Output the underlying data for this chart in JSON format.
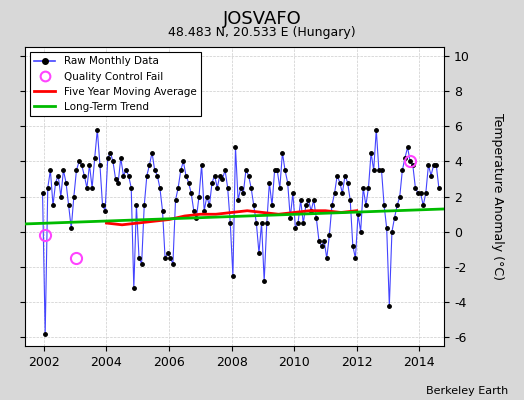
{
  "title": "JOSVAFO",
  "subtitle": "48.483 N, 20.533 E (Hungary)",
  "credit": "Berkeley Earth",
  "ylabel": "Temperature Anomaly (°C)",
  "ylim": [
    -6.5,
    10.5
  ],
  "yticks": [
    -6,
    -4,
    -2,
    0,
    2,
    4,
    6,
    8,
    10
  ],
  "xlim": [
    2001.4,
    2014.8
  ],
  "xticks": [
    2002,
    2004,
    2006,
    2008,
    2010,
    2012,
    2014
  ],
  "bg_color": "#d8d8d8",
  "plot_bg": "#ffffff",
  "raw_color": "#4444ff",
  "ma_color": "#ff0000",
  "trend_color": "#00bb00",
  "qc_color": "#ff44ff",
  "raw_data": {
    "times": [
      2001.958,
      2002.042,
      2002.125,
      2002.208,
      2002.292,
      2002.375,
      2002.458,
      2002.542,
      2002.625,
      2002.708,
      2002.792,
      2002.875,
      2002.958,
      2003.042,
      2003.125,
      2003.208,
      2003.292,
      2003.375,
      2003.458,
      2003.542,
      2003.625,
      2003.708,
      2003.792,
      2003.875,
      2003.958,
      2004.042,
      2004.125,
      2004.208,
      2004.292,
      2004.375,
      2004.458,
      2004.542,
      2004.625,
      2004.708,
      2004.792,
      2004.875,
      2004.958,
      2005.042,
      2005.125,
      2005.208,
      2005.292,
      2005.375,
      2005.458,
      2005.542,
      2005.625,
      2005.708,
      2005.792,
      2005.875,
      2005.958,
      2006.042,
      2006.125,
      2006.208,
      2006.292,
      2006.375,
      2006.458,
      2006.542,
      2006.625,
      2006.708,
      2006.792,
      2006.875,
      2006.958,
      2007.042,
      2007.125,
      2007.208,
      2007.292,
      2007.375,
      2007.458,
      2007.542,
      2007.625,
      2007.708,
      2007.792,
      2007.875,
      2007.958,
      2008.042,
      2008.125,
      2008.208,
      2008.292,
      2008.375,
      2008.458,
      2008.542,
      2008.625,
      2008.708,
      2008.792,
      2008.875,
      2008.958,
      2009.042,
      2009.125,
      2009.208,
      2009.292,
      2009.375,
      2009.458,
      2009.542,
      2009.625,
      2009.708,
      2009.792,
      2009.875,
      2009.958,
      2010.042,
      2010.125,
      2010.208,
      2010.292,
      2010.375,
      2010.458,
      2010.542,
      2010.625,
      2010.708,
      2010.792,
      2010.875,
      2010.958,
      2011.042,
      2011.125,
      2011.208,
      2011.292,
      2011.375,
      2011.458,
      2011.542,
      2011.625,
      2011.708,
      2011.792,
      2011.875,
      2011.958,
      2012.042,
      2012.125,
      2012.208,
      2012.292,
      2012.375,
      2012.458,
      2012.542,
      2012.625,
      2012.708,
      2012.792,
      2012.875,
      2012.958,
      2013.042,
      2013.125,
      2013.208,
      2013.292,
      2013.375,
      2013.458,
      2013.542,
      2013.625,
      2013.708,
      2013.792,
      2013.875,
      2013.958,
      2014.042,
      2014.125,
      2014.208,
      2014.292,
      2014.375,
      2014.458,
      2014.542,
      2014.625
    ],
    "values": [
      2.2,
      -5.8,
      2.5,
      3.5,
      1.5,
      2.8,
      3.2,
      2.0,
      3.5,
      2.8,
      1.5,
      0.2,
      2.0,
      3.5,
      4.0,
      3.8,
      3.2,
      2.5,
      3.8,
      2.5,
      4.2,
      5.8,
      3.8,
      1.5,
      1.2,
      4.2,
      4.5,
      4.0,
      3.0,
      2.8,
      4.2,
      3.2,
      3.5,
      3.2,
      2.5,
      -3.2,
      1.5,
      -1.5,
      -1.8,
      1.5,
      3.2,
      3.8,
      4.5,
      3.5,
      3.2,
      2.5,
      1.2,
      -1.5,
      -1.2,
      -1.5,
      -1.8,
      1.8,
      2.5,
      3.5,
      4.0,
      3.2,
      2.8,
      2.2,
      1.2,
      0.8,
      2.0,
      3.8,
      1.2,
      2.0,
      1.5,
      2.8,
      3.2,
      2.5,
      3.2,
      3.0,
      3.5,
      2.5,
      0.5,
      -2.5,
      4.8,
      1.8,
      2.5,
      2.2,
      3.5,
      3.2,
      2.5,
      1.5,
      0.5,
      -1.2,
      0.5,
      -2.8,
      0.5,
      2.8,
      1.5,
      3.5,
      3.5,
      2.5,
      4.5,
      3.5,
      2.8,
      0.8,
      2.2,
      0.2,
      0.5,
      1.8,
      0.5,
      1.5,
      1.8,
      1.2,
      1.8,
      0.8,
      -0.5,
      -0.8,
      -0.5,
      -1.5,
      -0.2,
      1.5,
      2.2,
      3.2,
      2.8,
      2.2,
      3.2,
      2.8,
      1.8,
      -0.8,
      -1.5,
      1.0,
      0.0,
      2.5,
      1.5,
      2.5,
      4.5,
      3.5,
      5.8,
      3.5,
      3.5,
      1.5,
      0.2,
      -4.2,
      0.0,
      0.8,
      1.5,
      2.0,
      3.5,
      4.2,
      4.8,
      4.0,
      3.8,
      2.5,
      2.2,
      2.2,
      1.5,
      2.2,
      3.8,
      3.2,
      3.8,
      3.8,
      2.5
    ]
  },
  "qc_fails": [
    {
      "time": 2002.042,
      "value": -0.2
    },
    {
      "time": 2003.042,
      "value": -1.5
    },
    {
      "time": 2013.708,
      "value": 4.0
    }
  ],
  "moving_avg": {
    "times": [
      2004.0,
      2004.5,
      2005.0,
      2005.5,
      2006.0,
      2006.5,
      2007.0,
      2007.5,
      2008.0,
      2008.5,
      2009.0,
      2009.5,
      2010.0,
      2010.5,
      2011.0,
      2011.5,
      2012.0
    ],
    "values": [
      0.5,
      0.4,
      0.5,
      0.6,
      0.7,
      0.9,
      1.0,
      1.0,
      1.1,
      1.2,
      1.1,
      1.0,
      1.1,
      1.2,
      1.2,
      1.1,
      1.2
    ]
  },
  "trend": {
    "times": [
      2001.4,
      2014.8
    ],
    "values": [
      0.45,
      1.3
    ]
  }
}
